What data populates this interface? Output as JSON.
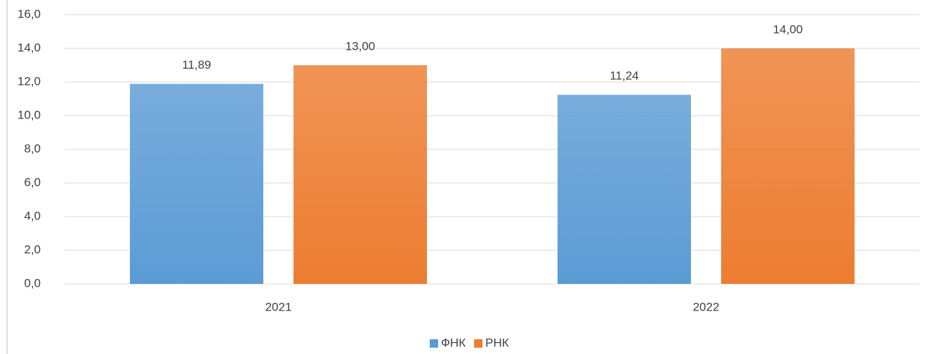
{
  "chart_data": {
    "type": "bar",
    "categories": [
      "2021",
      "2022"
    ],
    "series": [
      {
        "name": "ФНК",
        "color": "#5b9bd5",
        "values": [
          11.89,
          11.24
        ],
        "value_labels": [
          "11,89",
          "11,24"
        ]
      },
      {
        "name": "РНК",
        "color": "#ed7d31",
        "values": [
          13.0,
          14.0
        ],
        "value_labels": [
          "13,00",
          "14,00"
        ]
      }
    ],
    "ylim": [
      0,
      16
    ],
    "yticks": [
      {
        "value": 0,
        "label": "0,0"
      },
      {
        "value": 2,
        "label": "2,0"
      },
      {
        "value": 4,
        "label": "4,0"
      },
      {
        "value": 6,
        "label": "6,0"
      },
      {
        "value": 8,
        "label": "8,0"
      },
      {
        "value": 10,
        "label": "10,0"
      },
      {
        "value": 12,
        "label": "12,0"
      },
      {
        "value": 14,
        "label": "14,0"
      },
      {
        "value": 16,
        "label": "16,0"
      }
    ],
    "grid": true,
    "legend": "bottom"
  }
}
